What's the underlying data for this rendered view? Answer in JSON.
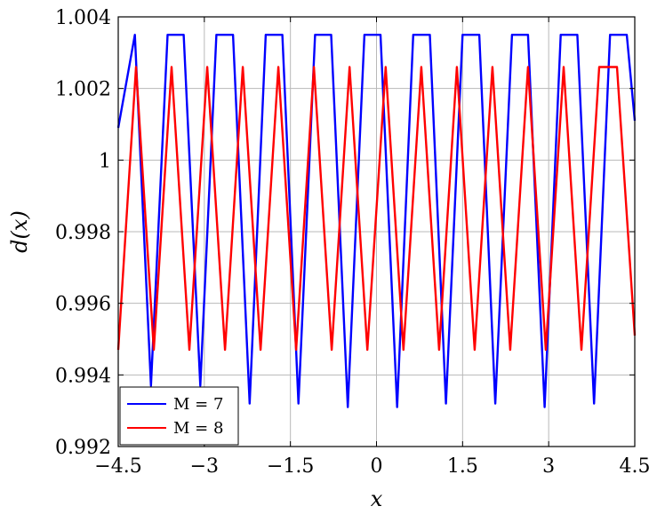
{
  "chart_data": {
    "type": "line",
    "title": "",
    "xlabel": "x",
    "ylabel": "d(x)",
    "xlim": [
      -4.5,
      4.5
    ],
    "ylim": [
      0.992,
      1.004
    ],
    "grid": true,
    "legend_position": "bottom-left",
    "x_ticks": [
      -4.5,
      -3,
      -1.5,
      0,
      1.5,
      3,
      4.5
    ],
    "x_tick_labels": [
      "−4.5",
      "−3",
      "−1.5",
      "0",
      "1.5",
      "3",
      "4.5"
    ],
    "y_ticks": [
      0.992,
      0.994,
      0.996,
      0.998,
      1,
      1.002,
      1.004
    ],
    "y_tick_labels": [
      "0.992",
      "0.994",
      "0.996",
      "0.998",
      "1",
      "1.002",
      "1.004"
    ],
    "series": [
      {
        "name": "M = 7",
        "color": "#0000ff",
        "x": [
          -4.5,
          -4.21,
          -3.93,
          -3.64,
          -3.36,
          -3.07,
          -2.79,
          -2.5,
          -2.21,
          -1.93,
          -1.64,
          -1.36,
          -1.07,
          -0.79,
          -0.5,
          -0.21,
          0.07,
          0.36,
          0.64,
          0.93,
          1.21,
          1.5,
          1.79,
          2.07,
          2.36,
          2.64,
          2.93,
          3.21,
          3.5,
          3.79,
          4.07,
          4.36,
          4.5
        ],
        "y": [
          1.0009,
          1.0035,
          0.9937,
          1.0035,
          1.0035,
          0.9937,
          1.0035,
          1.0035,
          0.9932,
          1.0035,
          1.0035,
          0.9932,
          1.0035,
          1.0035,
          0.9931,
          1.0035,
          1.0035,
          0.9931,
          1.0035,
          1.0035,
          0.9932,
          1.0035,
          1.0035,
          0.9932,
          1.0035,
          1.0035,
          0.9931,
          1.0035,
          1.0035,
          0.9932,
          1.0035,
          1.0035,
          1.0011
        ]
      },
      {
        "name": "M = 8",
        "color": "#ff0000",
        "x": [
          -4.5,
          -4.19,
          -3.88,
          -3.57,
          -3.26,
          -2.95,
          -2.64,
          -2.33,
          -2.02,
          -1.71,
          -1.4,
          -1.09,
          -0.78,
          -0.47,
          -0.16,
          0.16,
          0.47,
          0.78,
          1.09,
          1.4,
          1.71,
          2.02,
          2.33,
          2.64,
          2.95,
          3.26,
          3.57,
          3.88,
          4.19,
          4.5
        ],
        "y": [
          0.9947,
          1.0026,
          0.9947,
          1.0026,
          0.9947,
          1.0026,
          0.9947,
          1.0026,
          0.9947,
          1.0026,
          0.9947,
          1.0026,
          0.9947,
          1.0026,
          0.9947,
          1.0026,
          0.9947,
          1.0026,
          0.9947,
          1.0026,
          0.9947,
          1.0026,
          0.9947,
          1.0026,
          0.9947,
          1.0026,
          0.9947,
          1.0026,
          1.0026,
          0.9951
        ]
      }
    ]
  }
}
